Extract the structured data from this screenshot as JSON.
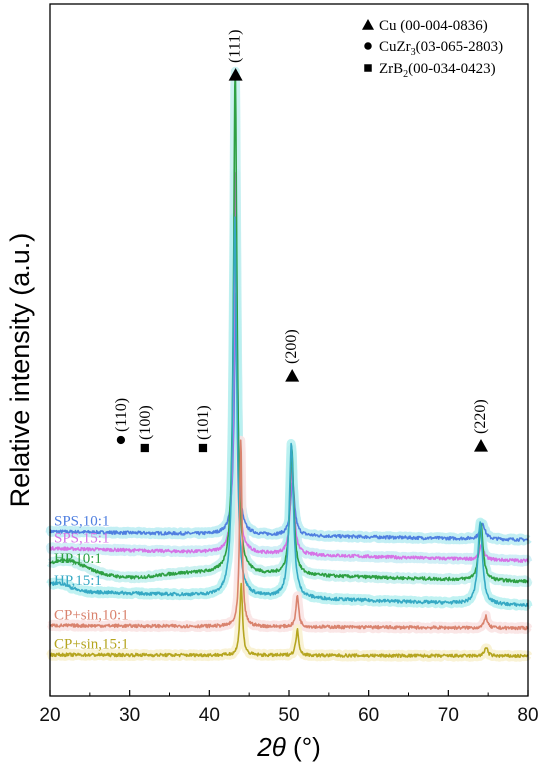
{
  "chart_data": {
    "type": "line",
    "xlabel_italic": "2θ",
    "xlabel_unit": " (°)",
    "ylabel": "Relative intensity (a.u.)",
    "xlim": [
      20,
      80
    ],
    "xticks": [
      "20",
      "30",
      "40",
      "50",
      "60",
      "70",
      "80"
    ],
    "grid": false,
    "legend_position": "top-right",
    "legend": [
      {
        "marker": "triangle",
        "label": "Cu (00-004-0836)"
      },
      {
        "marker": "circle",
        "label_main": "CuZr",
        "label_sub": "3",
        "label_rest": "(03-065-2803)"
      },
      {
        "marker": "square",
        "label_main": "ZrB",
        "label_sub": "2",
        "label_rest": "(00-034-0423)"
      }
    ],
    "peak_annotations": [
      {
        "label": "(111)",
        "x": 43.3,
        "marker": "triangle",
        "phase": "Cu"
      },
      {
        "label": "(200)",
        "x": 50.4,
        "marker": "triangle",
        "phase": "Cu"
      },
      {
        "label": "(220)",
        "x": 74.1,
        "marker": "triangle",
        "phase": "Cu"
      },
      {
        "label": "(110)",
        "x": 28.9,
        "marker": "circle",
        "phase": "CuZr3"
      },
      {
        "label": "(100)",
        "x": 31.9,
        "marker": "square",
        "phase": "ZrB2"
      },
      {
        "label": "(101)",
        "x": 39.2,
        "marker": "square",
        "phase": "ZrB2"
      }
    ],
    "series": [
      {
        "name": "SPS,10:1",
        "color": "#4f7fe0",
        "band": "#b8ecf2",
        "baseline_start": 6.18,
        "baseline_end": 5.87,
        "peaks": [
          {
            "x": 43.35,
            "height": 9.1,
            "width": 0.26
          },
          {
            "x": 50.45,
            "height": 1.95,
            "width": 0.32
          },
          {
            "x": 74.3,
            "height": 0.6,
            "width": 0.35
          }
        ]
      },
      {
        "name": "SPS,15:1",
        "color": "#d673e6",
        "band": "#c8ecf4",
        "baseline_start": 5.55,
        "baseline_end": 5.08,
        "peaks": [
          {
            "x": 43.3,
            "height": 14.6,
            "width": 0.22
          },
          {
            "x": 50.4,
            "height": 3.3,
            "width": 0.28
          },
          {
            "x": 74.2,
            "height": 0.55,
            "width": 0.3
          }
        ]
      },
      {
        "name": "HP,10:1",
        "color": "#2ea043",
        "band": "#c2eeee",
        "baseline_start": 4.78,
        "baseline_end": 4.3,
        "peaks": [
          {
            "x": 43.25,
            "height": 19.0,
            "width": 0.25
          },
          {
            "x": 50.35,
            "height": 4.7,
            "width": 0.3
          },
          {
            "x": 74.1,
            "height": 2.1,
            "width": 0.32
          }
        ]
      },
      {
        "name": "HP,15:1",
        "color": "#36a9c4",
        "band": "#b5f0f0",
        "baseline_start": 3.95,
        "baseline_end": 3.4,
        "peaks": [
          {
            "x": 43.2,
            "height": 14.2,
            "width": 0.28
          },
          {
            "x": 50.3,
            "height": 5.8,
            "width": 0.32
          },
          {
            "x": 74.0,
            "height": 3.1,
            "width": 0.34
          }
        ]
      },
      {
        "name": "CP+sin,10:1",
        "color": "#d9836e",
        "band": "#f9e2e2",
        "baseline_start": 2.65,
        "baseline_end": 2.55,
        "peaks": [
          {
            "x": 43.95,
            "height": 7.0,
            "width": 0.18
          },
          {
            "x": 51.05,
            "height": 1.2,
            "width": 0.2
          },
          {
            "x": 74.7,
            "height": 0.45,
            "width": 0.22
          }
        ]
      },
      {
        "name": "CP+sin,15:1",
        "color": "#b5a520",
        "band": "#f8f0cc",
        "baseline_start": 1.55,
        "baseline_end": 1.5,
        "peaks": [
          {
            "x": 44.0,
            "height": 2.7,
            "width": 0.2
          },
          {
            "x": 51.05,
            "height": 0.95,
            "width": 0.22
          },
          {
            "x": 74.75,
            "height": 0.35,
            "width": 0.22
          }
        ]
      }
    ]
  }
}
